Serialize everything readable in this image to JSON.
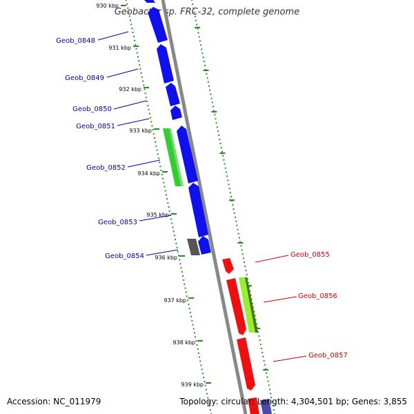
{
  "title": "Geobacter sp. FRC-32, complete genome",
  "footer": {
    "accession": "Accession: NC_011979",
    "topology": "Topology: circular; Length: 4,304,501 bp; Genes: 3,855"
  },
  "colors": {
    "backbone": "#888888",
    "tick_green": "#228b22",
    "forward_gene": "#1010ee",
    "reverse_gene": "#ee1010",
    "forward_label": "#0000aa",
    "reverse_label": "#cc0000",
    "gray_gene": "#555555",
    "green_gene": "#33cc33",
    "lime_gene": "#99ee33"
  },
  "ticks": [
    "930 kbp",
    "931 kbp",
    "932 kbp",
    "933 kbp",
    "934 kbp",
    "935 kbp",
    "936 kbp",
    "937 kbp",
    "938 kbp",
    "939 kbp"
  ],
  "genes_left": [
    "Geob_0848",
    "Geob_0849",
    "Geob_0850",
    "Geob_0851",
    "Geob_0852",
    "Geob_0853",
    "Geob_0854"
  ],
  "genes_right": [
    "Geob_0855",
    "Geob_0856",
    "Geob_0857"
  ]
}
